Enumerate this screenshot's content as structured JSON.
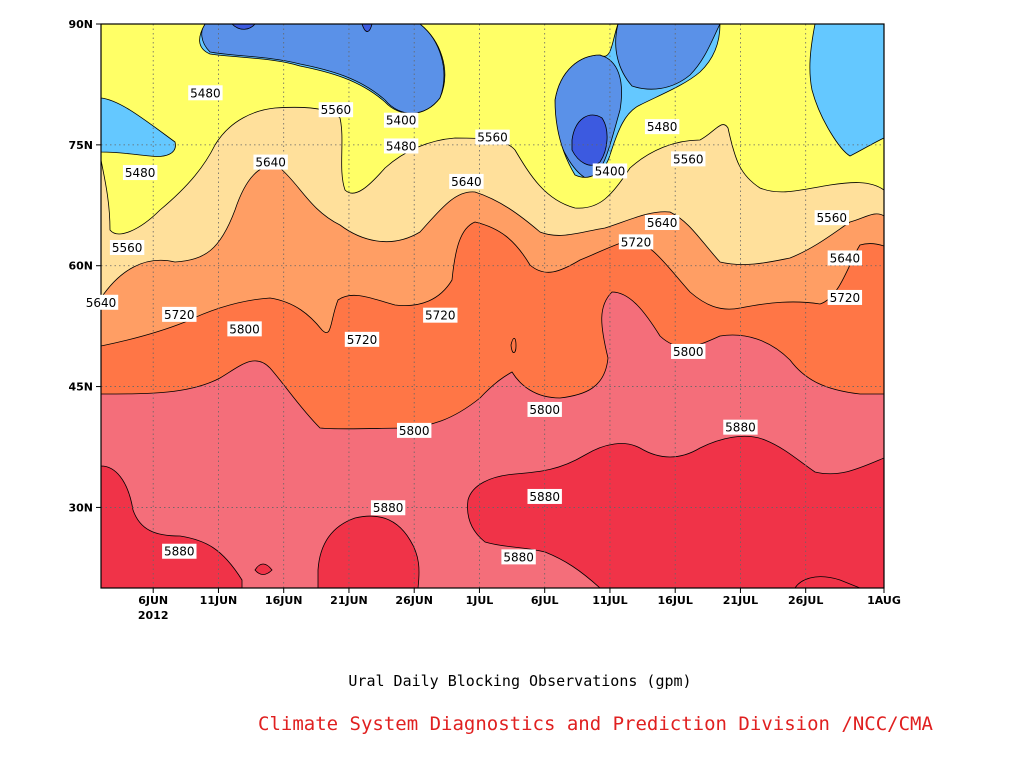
{
  "chart_data": {
    "type": "heatmap",
    "subtitle": "Ural Daily Blocking Observations (gpm)",
    "credit": "Climate System Diagnostics and Prediction Division /NCC/CMA",
    "xlabel": "",
    "ylabel": "",
    "x_axis": {
      "range": [
        "2012-06-02",
        "2012-08-01"
      ],
      "ticks": [
        {
          "date": "2012-06-06",
          "label": "6JUN",
          "sub": "2012"
        },
        {
          "date": "2012-06-11",
          "label": "11JUN"
        },
        {
          "date": "2012-06-16",
          "label": "16JUN"
        },
        {
          "date": "2012-06-21",
          "label": "21JUN"
        },
        {
          "date": "2012-06-26",
          "label": "26JUN"
        },
        {
          "date": "2012-07-01",
          "label": "1JUL"
        },
        {
          "date": "2012-07-06",
          "label": "6JUL"
        },
        {
          "date": "2012-07-11",
          "label": "11JUL"
        },
        {
          "date": "2012-07-16",
          "label": "16JUL"
        },
        {
          "date": "2012-07-21",
          "label": "21JUL"
        },
        {
          "date": "2012-07-26",
          "label": "26JUL"
        },
        {
          "date": "2012-08-01",
          "label": "1AUG"
        }
      ]
    },
    "y_axis": {
      "range": [
        20,
        90
      ],
      "ticks": [
        {
          "value": 30,
          "label": "30N"
        },
        {
          "value": 45,
          "label": "45N"
        },
        {
          "value": 60,
          "label": "60N"
        },
        {
          "value": 75,
          "label": "75N"
        },
        {
          "value": 90,
          "label": "90N"
        }
      ]
    },
    "grid": true,
    "levels": [
      5320,
      5400,
      5480,
      5560,
      5640,
      5720,
      5800,
      5880
    ],
    "colors": {
      "below_5320": "#1c1cc8",
      "5320_5400": "#3c5ae0",
      "5400_5480": "#5a91e8",
      "5480_5560": "#64c8ff",
      "5560_5640": "#ffff66",
      "5640_5720": "#ffe09b",
      "5720_5800": "#ff9e64",
      "5800_5880": "#ff7646",
      "5880_5960": "#f46e7a",
      "above_5960": "#f03348"
    },
    "contour_labels": [
      {
        "text": "5480",
        "value": 5480,
        "date": "2012-06-10",
        "lat": 81.4
      },
      {
        "text": "5560",
        "value": 5560,
        "date": "2012-06-20",
        "lat": 79.3
      },
      {
        "text": "5400",
        "value": 5400,
        "date": "2012-06-25",
        "lat": 78.0
      },
      {
        "text": "5480",
        "value": 5480,
        "date": "2012-06-25",
        "lat": 74.8
      },
      {
        "text": "5560",
        "value": 5560,
        "date": "2012-07-02",
        "lat": 75.9
      },
      {
        "text": "5480",
        "value": 5480,
        "date": "2012-06-05",
        "lat": 71.5
      },
      {
        "text": "5640",
        "value": 5640,
        "date": "2012-06-15",
        "lat": 72.8
      },
      {
        "text": "5640",
        "value": 5640,
        "date": "2012-06-30",
        "lat": 70.4
      },
      {
        "text": "5400",
        "value": 5400,
        "date": "2012-07-11",
        "lat": 71.7
      },
      {
        "text": "5480",
        "value": 5480,
        "date": "2012-07-15",
        "lat": 77.2
      },
      {
        "text": "5560",
        "value": 5560,
        "date": "2012-07-17",
        "lat": 73.2
      },
      {
        "text": "5560",
        "value": 5560,
        "date": "2012-07-28",
        "lat": 65.9
      },
      {
        "text": "5640",
        "value": 5640,
        "date": "2012-07-15",
        "lat": 65.3
      },
      {
        "text": "5720",
        "value": 5720,
        "date": "2012-07-13",
        "lat": 62.9
      },
      {
        "text": "5560",
        "value": 5560,
        "date": "2012-06-04",
        "lat": 62.2
      },
      {
        "text": "5640",
        "value": 5640,
        "date": "2012-07-29",
        "lat": 60.9
      },
      {
        "text": "5640",
        "value": 5640,
        "date": "2012-06-02",
        "lat": 55.4
      },
      {
        "text": "5720",
        "value": 5720,
        "date": "2012-06-08",
        "lat": 53.9
      },
      {
        "text": "5720",
        "value": 5720,
        "date": "2012-06-28",
        "lat": 53.8
      },
      {
        "text": "5720",
        "value": 5720,
        "date": "2012-07-29",
        "lat": 56.0
      },
      {
        "text": "5800",
        "value": 5800,
        "date": "2012-06-13",
        "lat": 52.1
      },
      {
        "text": "5720",
        "value": 5720,
        "date": "2012-06-22",
        "lat": 50.8
      },
      {
        "text": "5800",
        "value": 5800,
        "date": "2012-07-17",
        "lat": 49.3
      },
      {
        "text": "5800",
        "value": 5800,
        "date": "2012-07-06",
        "lat": 42.1
      },
      {
        "text": "5800",
        "value": 5800,
        "date": "2012-06-26",
        "lat": 39.5
      },
      {
        "text": "5880",
        "value": 5880,
        "date": "2012-07-21",
        "lat": 39.9
      },
      {
        "text": "5880",
        "value": 5880,
        "date": "2012-07-06",
        "lat": 31.3
      },
      {
        "text": "5880",
        "value": 5880,
        "date": "2012-06-24",
        "lat": 29.9
      },
      {
        "text": "5880",
        "value": 5880,
        "date": "2012-06-08",
        "lat": 24.5
      },
      {
        "text": "5880",
        "value": 5880,
        "date": "2012-07-04",
        "lat": 23.8
      }
    ]
  }
}
